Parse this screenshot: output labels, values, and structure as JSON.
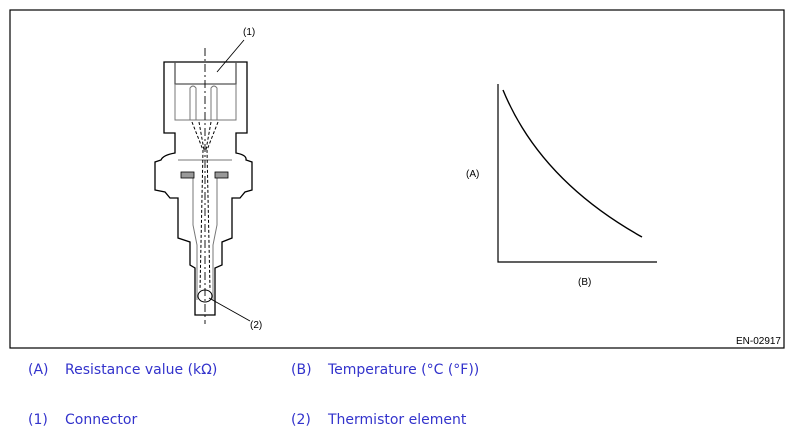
{
  "figure": {
    "id": "EN-02917",
    "callouts": {
      "connector": "(1)",
      "thermistor": "(2)"
    },
    "graph": {
      "y_label": "(A)",
      "x_label": "(B)",
      "curve": "decreasing"
    }
  },
  "legend": [
    {
      "key": "(A)",
      "text": "Resistance value (kΩ)"
    },
    {
      "key": "(B)",
      "text": "Temperature (°C (°F))"
    },
    {
      "key": "(1)",
      "text": "Connector"
    },
    {
      "key": "(2)",
      "text": "Thermistor element"
    }
  ],
  "colors": {
    "legend_text": "#3333cc",
    "frame": "#000000"
  }
}
